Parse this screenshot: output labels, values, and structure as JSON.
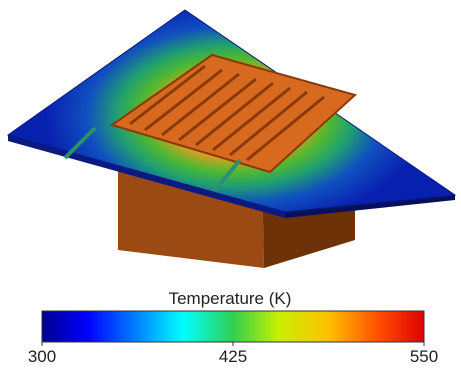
{
  "colorbar": {
    "title": "Temperature (K)",
    "range": [
      300,
      550
    ],
    "ticks": [
      300,
      425,
      550
    ]
  }
}
